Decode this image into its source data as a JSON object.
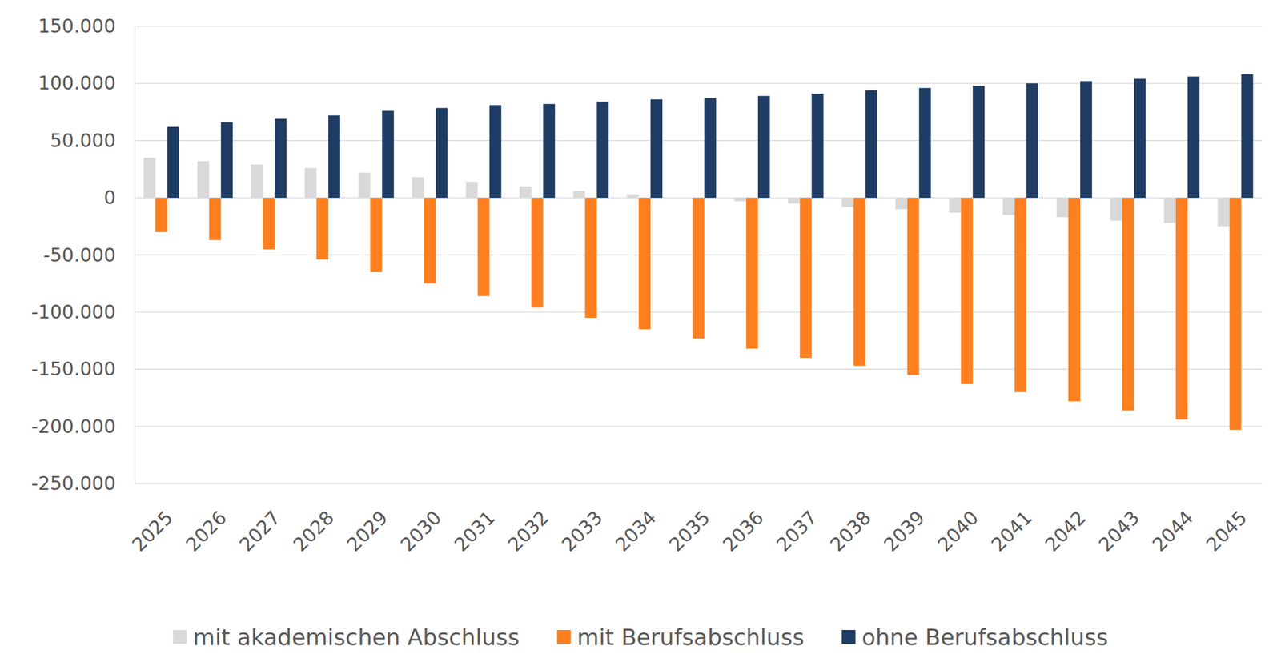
{
  "chart_data": {
    "type": "bar",
    "categories": [
      "2025",
      "2026",
      "2027",
      "2028",
      "2029",
      "2030",
      "2031",
      "2032",
      "2033",
      "2034",
      "2035",
      "2036",
      "2037",
      "2038",
      "2039",
      "2040",
      "2041",
      "2042",
      "2043",
      "2044",
      "2045"
    ],
    "series": [
      {
        "name": "mit akademischen Abschluss",
        "color": "#d9d9d9",
        "values": [
          35000,
          32000,
          29000,
          26000,
          22000,
          18000,
          14000,
          10000,
          6000,
          3000,
          0,
          -3000,
          -5000,
          -8000,
          -10000,
          -13000,
          -15000,
          -17000,
          -20000,
          -22000,
          -25000
        ]
      },
      {
        "name": "mit Berufsabschluss",
        "color": "#fd7f1f",
        "values": [
          -30000,
          -37000,
          -45000,
          -54000,
          -65000,
          -75000,
          -86000,
          -96000,
          -105000,
          -115000,
          -123000,
          -132000,
          -140000,
          -147000,
          -155000,
          -163000,
          -170000,
          -178000,
          -186000,
          -194000,
          -203000
        ]
      },
      {
        "name": "ohne Berufsabschluss",
        "color": "#1f3d64",
        "values": [
          62000,
          66000,
          69000,
          72000,
          76000,
          78500,
          81000,
          82000,
          84000,
          86000,
          87000,
          89000,
          91000,
          94000,
          96000,
          98000,
          100000,
          102000,
          104000,
          106000,
          108000
        ]
      }
    ],
    "ylim": [
      -250000,
      150000
    ],
    "yticks": [
      {
        "value": -250000,
        "label": "-250.000"
      },
      {
        "value": -200000,
        "label": "-200.000"
      },
      {
        "value": -150000,
        "label": "-150.000"
      },
      {
        "value": -100000,
        "label": "-100.000"
      },
      {
        "value": -50000,
        "label": "-50.000"
      },
      0,
      {
        "value": 50000,
        "label": "50.000"
      },
      {
        "value": 100000,
        "label": "100.000"
      },
      {
        "value": 150000,
        "label": "150.000"
      }
    ],
    "grid": true,
    "legend": "bottom"
  }
}
